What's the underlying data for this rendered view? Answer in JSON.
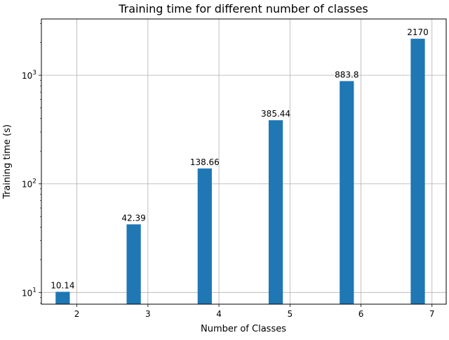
{
  "chart_data": {
    "type": "bar",
    "title": "Training time for different number of classes",
    "xlabel": "Number of Classes",
    "ylabel": "Training time (s)",
    "x": [
      2,
      3,
      4,
      5,
      6,
      7
    ],
    "values": [
      10.14,
      42.39,
      138.66,
      385.44,
      883.8,
      2170
    ],
    "data_labels": [
      "10.14",
      "42.39",
      "138.66",
      "385.44",
      "883.8",
      "2170"
    ],
    "bar_width": 0.2,
    "bar_offset": -0.2,
    "xlim": [
      1.5,
      7.2
    ],
    "ylim": [
      7.8,
      3300
    ],
    "y_scale": "log",
    "x_ticks": [
      2,
      3,
      4,
      5,
      6,
      7
    ],
    "y_ticks": [
      {
        "value": 10,
        "base": "10",
        "exp": "1"
      },
      {
        "value": 100,
        "base": "10",
        "exp": "2"
      },
      {
        "value": 1000,
        "base": "10",
        "exp": "3"
      }
    ],
    "grid": true,
    "bar_color": "#1f77b4",
    "grid_color": "#b0b0b0"
  }
}
